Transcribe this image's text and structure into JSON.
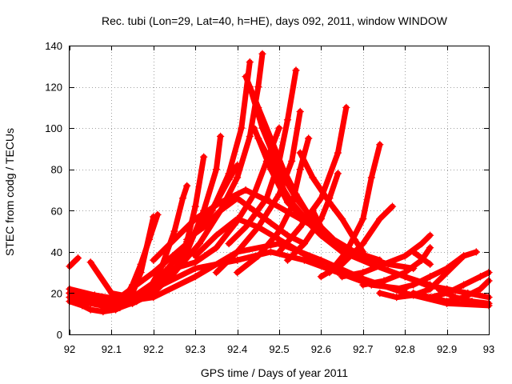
{
  "chart_data": {
    "type": "scatter",
    "title": "Rec. tubi (Lon=29, Lat=40, h=HE), days 092, 2011, window WINDOW",
    "xlabel": "GPS time / Days of year 2011",
    "ylabel": "STEC from codg / TECUs",
    "xlim": [
      92,
      93
    ],
    "ylim": [
      0,
      140
    ],
    "xticks": [
      92,
      92.1,
      92.2,
      92.3,
      92.4,
      92.5,
      92.6,
      92.7,
      92.8,
      92.9,
      93
    ],
    "xtick_labels": [
      "92",
      "92.1",
      "92.2",
      "92.3",
      "92.4",
      "92.5",
      "92.6",
      "92.7",
      "92.8",
      "92.9",
      "93"
    ],
    "yticks": [
      0,
      20,
      40,
      60,
      80,
      100,
      120,
      140
    ],
    "ytick_labels": [
      "0",
      "20",
      "40",
      "60",
      "80",
      "100",
      "120",
      "140"
    ],
    "grid": true,
    "legend": "none",
    "marker": "+",
    "color": "#ff0000",
    "series": [
      {
        "x": [
          92.0,
          92.01,
          92.02
        ],
        "y": [
          33,
          35,
          37
        ]
      },
      {
        "x": [
          92.0,
          92.03,
          92.06,
          92.09,
          92.11,
          92.13,
          92.15,
          92.17,
          92.19,
          92.21
        ],
        "y": [
          20,
          17,
          15,
          14,
          15,
          17,
          24,
          34,
          46,
          58
        ]
      },
      {
        "x": [
          92.0,
          92.03,
          92.05,
          92.08,
          92.11,
          92.14,
          92.17,
          92.2
        ],
        "y": [
          16,
          14,
          12,
          11,
          12,
          15,
          30,
          57
        ]
      },
      {
        "x": [
          92.0,
          92.04,
          92.08,
          92.12,
          92.16,
          92.19,
          92.22,
          92.25,
          92.27,
          92.28
        ],
        "y": [
          20,
          16,
          14,
          13,
          16,
          22,
          33,
          50,
          66,
          72
        ]
      },
      {
        "x": [
          92.0,
          92.05,
          92.1,
          92.15,
          92.2,
          92.25,
          92.28,
          92.3,
          92.32
        ],
        "y": [
          18,
          15,
          13,
          15,
          20,
          30,
          45,
          62,
          86
        ]
      },
      {
        "x": [
          92.0,
          92.06,
          92.12,
          92.18,
          92.24,
          92.28,
          92.32,
          92.35,
          92.36
        ],
        "y": [
          22,
          19,
          17,
          20,
          28,
          40,
          60,
          80,
          96
        ]
      },
      {
        "x": [
          92.08,
          92.14,
          92.2,
          92.26,
          92.31,
          92.35,
          92.38,
          92.4
        ],
        "y": [
          13,
          16,
          24,
          38,
          52,
          64,
          75,
          82
        ]
      },
      {
        "x": [
          92.05,
          92.1,
          92.15,
          92.2,
          92.25,
          92.3,
          92.35,
          92.4,
          92.44,
          92.47,
          92.5
        ],
        "y": [
          35,
          20,
          18,
          25,
          32,
          35,
          42,
          55,
          68,
          84,
          100
        ]
      },
      {
        "x": [
          92.0,
          92.1,
          92.2,
          92.3,
          92.4,
          92.5,
          92.6,
          92.7,
          92.8,
          92.9,
          93.0
        ],
        "y": [
          20,
          15,
          18,
          28,
          40,
          44,
          36,
          27,
          20,
          15,
          14
        ]
      },
      {
        "x": [
          92.1,
          92.2,
          92.3,
          92.4,
          92.48,
          92.56,
          92.64,
          92.72,
          92.8
        ],
        "y": [
          12,
          22,
          32,
          36,
          40,
          36,
          30,
          24,
          22
        ]
      },
      {
        "x": [
          92.12,
          92.2,
          92.28,
          92.34,
          92.38,
          92.41,
          92.43
        ],
        "y": [
          18,
          30,
          44,
          60,
          78,
          100,
          132
        ]
      },
      {
        "x": [
          92.18,
          92.25,
          92.31,
          92.36,
          92.4,
          92.43,
          92.45,
          92.46
        ],
        "y": [
          20,
          30,
          44,
          60,
          76,
          96,
          120,
          136
        ]
      },
      {
        "x": [
          92.42,
          92.45,
          92.48,
          92.51,
          92.54,
          92.57,
          92.6
        ],
        "y": [
          125,
          110,
          95,
          80,
          68,
          58,
          50
        ]
      },
      {
        "x": [
          92.43,
          92.46,
          92.5,
          92.54,
          92.58,
          92.63,
          92.68,
          92.74
        ],
        "y": [
          120,
          100,
          80,
          66,
          56,
          46,
          40,
          36
        ]
      },
      {
        "x": [
          92.44,
          92.48,
          92.52,
          92.58,
          92.64,
          92.7,
          92.76,
          92.82
        ],
        "y": [
          100,
          80,
          64,
          52,
          44,
          38,
          34,
          32
        ]
      },
      {
        "x": [
          92.38,
          92.42,
          92.47,
          92.5,
          92.52,
          92.54
        ],
        "y": [
          44,
          52,
          66,
          84,
          104,
          128
        ]
      },
      {
        "x": [
          92.45,
          92.49,
          92.52,
          92.56,
          92.6,
          92.65,
          92.72,
          92.8,
          92.86
        ],
        "y": [
          95,
          80,
          66,
          56,
          48,
          40,
          34,
          28,
          24
        ]
      },
      {
        "x": [
          92.35,
          92.4,
          92.45,
          92.5,
          92.53,
          92.55
        ],
        "y": [
          30,
          40,
          52,
          68,
          84,
          108
        ]
      },
      {
        "x": [
          92.48,
          92.53,
          92.58,
          92.63,
          92.68,
          92.72
        ],
        "y": [
          80,
          64,
          52,
          44,
          38,
          34
        ]
      },
      {
        "x": [
          92.4,
          92.45,
          92.5,
          92.53,
          92.55,
          92.57
        ],
        "y": [
          30,
          38,
          50,
          62,
          80,
          95
        ]
      },
      {
        "x": [
          92.5,
          92.55,
          92.6,
          92.64,
          92.66
        ],
        "y": [
          40,
          52,
          66,
          88,
          110
        ]
      },
      {
        "x": [
          92.52,
          92.56,
          92.6,
          92.62,
          92.64
        ],
        "y": [
          36,
          44,
          56,
          66,
          78
        ]
      },
      {
        "x": [
          92.55,
          92.58,
          92.62,
          92.65,
          92.68,
          92.7
        ],
        "y": [
          88,
          76,
          64,
          56,
          46,
          40
        ]
      },
      {
        "x": [
          92.58,
          92.6,
          92.62,
          92.65,
          92.68,
          92.7,
          92.73
        ],
        "y": [
          60,
          52,
          46,
          42,
          40,
          38,
          36
        ]
      },
      {
        "x": [
          92.62,
          92.66,
          92.7,
          92.72,
          92.74
        ],
        "y": [
          30,
          40,
          56,
          76,
          92
        ]
      },
      {
        "x": [
          92.6,
          92.65,
          92.7,
          92.74,
          92.77
        ],
        "y": [
          28,
          34,
          44,
          56,
          62
        ]
      },
      {
        "x": [
          92.65,
          92.7,
          92.75,
          92.8,
          92.84,
          92.86
        ],
        "y": [
          28,
          30,
          34,
          38,
          44,
          48
        ]
      },
      {
        "x": [
          92.7,
          92.75,
          92.8,
          92.84,
          92.86
        ],
        "y": [
          24,
          26,
          30,
          36,
          42
        ]
      },
      {
        "x": [
          92.74,
          92.78,
          92.82,
          92.86,
          92.9,
          92.94,
          92.97
        ],
        "y": [
          20,
          18,
          19,
          22,
          30,
          38,
          40
        ]
      },
      {
        "x": [
          92.78,
          92.82,
          92.86,
          92.9,
          92.94
        ],
        "y": [
          22,
          24,
          28,
          32,
          38
        ]
      },
      {
        "x": [
          92.82,
          92.86,
          92.9,
          92.94,
          92.98,
          93.0
        ],
        "y": [
          20,
          18,
          20,
          24,
          28,
          30
        ]
      },
      {
        "x": [
          92.86,
          92.9,
          92.94,
          92.98,
          93.0
        ],
        "y": [
          18,
          16,
          18,
          22,
          26
        ]
      },
      {
        "x": [
          92.8,
          92.85,
          92.9,
          92.95,
          93.0
        ],
        "y": [
          28,
          24,
          22,
          20,
          18
        ]
      },
      {
        "x": [
          92.88,
          92.92,
          92.96,
          93.0
        ],
        "y": [
          22,
          18,
          16,
          15
        ]
      },
      {
        "x": [
          92.82,
          92.86
        ],
        "y": [
          40,
          34
        ]
      },
      {
        "x": [
          92.3,
          92.35,
          92.4,
          92.45,
          92.5,
          92.55,
          92.6
        ],
        "y": [
          38,
          48,
          56,
          52,
          46,
          40,
          34
        ]
      },
      {
        "x": [
          92.28,
          92.32,
          92.36,
          92.4,
          92.44,
          92.48,
          92.52,
          92.56
        ],
        "y": [
          46,
          52,
          60,
          66,
          60,
          54,
          48,
          44
        ]
      },
      {
        "x": [
          92.2,
          92.25,
          92.3,
          92.36,
          92.42,
          92.48,
          92.55,
          92.62
        ],
        "y": [
          36,
          46,
          56,
          64,
          70,
          64,
          56,
          48
        ]
      }
    ]
  }
}
